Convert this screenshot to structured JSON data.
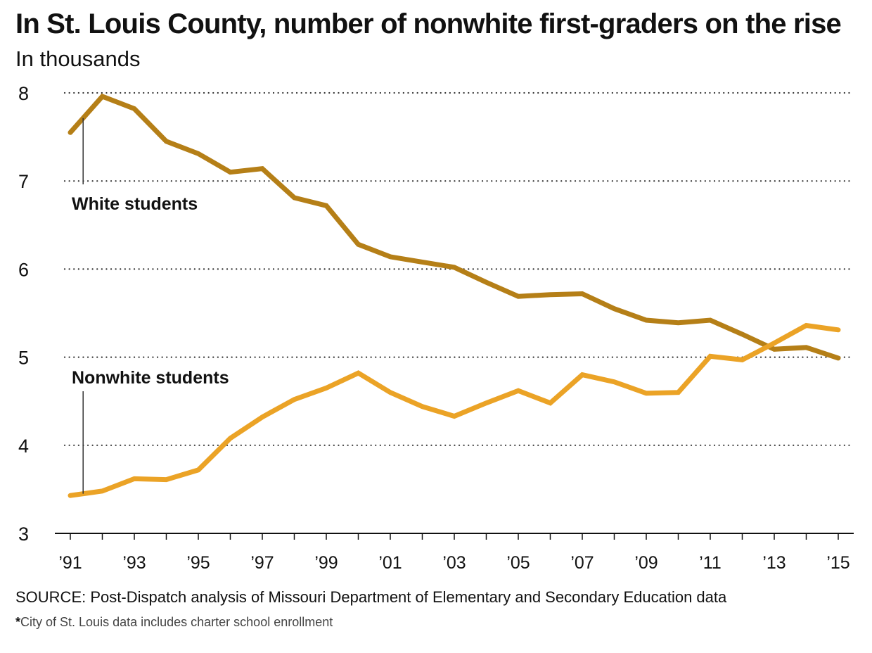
{
  "title": "In St. Louis County, number of nonwhite first-graders on the rise",
  "subtitle": "In thousands",
  "source": "SOURCE: Post-Dispatch analysis of Missouri Department of Elementary and Secondary Education data",
  "footnote_star": "*",
  "footnote": "City of St. Louis data includes charter school enrollment",
  "chart_data": {
    "type": "line",
    "title": "In St. Louis County, number of nonwhite first-graders on the rise",
    "ylabel": "In thousands",
    "xlabel": "",
    "x": [
      1991,
      1992,
      1993,
      1994,
      1995,
      1996,
      1997,
      1998,
      1999,
      2000,
      2001,
      2002,
      2003,
      2004,
      2005,
      2006,
      2007,
      2008,
      2009,
      2010,
      2011,
      2012,
      2013,
      2014,
      2015
    ],
    "xlim": [
      1991,
      2015
    ],
    "ylim": [
      3,
      8
    ],
    "yticks": [
      3,
      4,
      5,
      6,
      7,
      8
    ],
    "ytick_labels": [
      "3",
      "4",
      "5",
      "6",
      "7",
      "8"
    ],
    "xticks": [
      1991,
      1993,
      1995,
      1997,
      1999,
      2001,
      2003,
      2005,
      2007,
      2009,
      2011,
      2013,
      2015
    ],
    "xtick_labels": [
      "’91",
      "’93",
      "’95",
      "’97",
      "’99",
      "’01",
      "’03",
      "’05",
      "’07",
      "’09",
      "’11",
      "’13",
      "’15"
    ],
    "grid": "horizontal dotted",
    "series": [
      {
        "name": "White students",
        "color": "#b57f17",
        "values": [
          7.55,
          7.96,
          7.82,
          7.45,
          7.31,
          7.1,
          7.14,
          6.81,
          6.72,
          6.28,
          6.14,
          6.08,
          6.02,
          5.85,
          5.69,
          5.71,
          5.72,
          5.55,
          5.42,
          5.39,
          5.42,
          5.26,
          5.09,
          5.11,
          4.99
        ]
      },
      {
        "name": "Nonwhite students",
        "color": "#eba326",
        "values": [
          3.43,
          3.48,
          3.62,
          3.61,
          3.72,
          4.08,
          4.32,
          4.52,
          4.65,
          4.82,
          4.6,
          4.44,
          4.33,
          4.48,
          4.62,
          4.48,
          4.8,
          4.72,
          4.59,
          4.6,
          5.01,
          4.97,
          5.16,
          5.36,
          5.31
        ]
      }
    ],
    "annotations": [
      {
        "text": "White students",
        "series": 0,
        "anchor_year": 1991.4
      },
      {
        "text": "Nonwhite students",
        "series": 1,
        "anchor_year": 1991.4
      }
    ]
  }
}
